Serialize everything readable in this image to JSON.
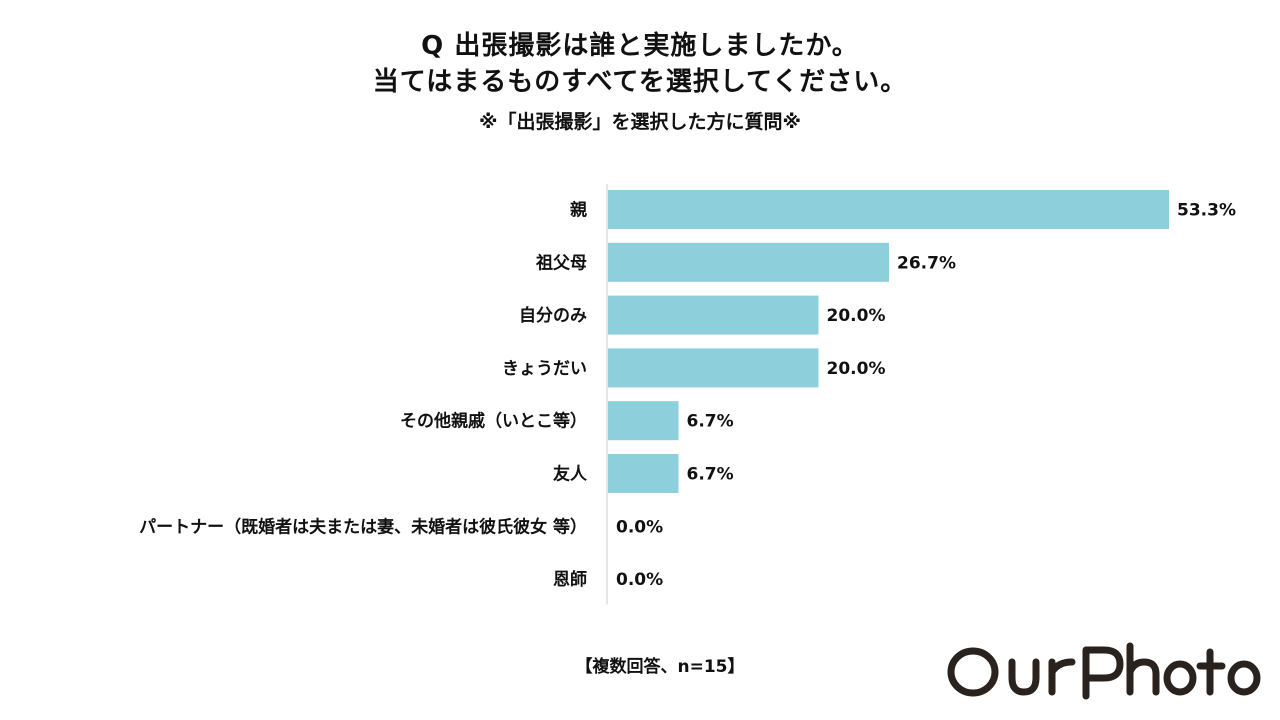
{
  "header": {
    "title_line1": "Q 出張撮影は誰と実施しましたか。",
    "title_line2": "当てはまるものすべてを選択してください。",
    "subtitle": "※「出張撮影」を選択した方に質問※"
  },
  "chart_data": {
    "type": "bar",
    "orientation": "horizontal",
    "categories": [
      "親",
      "祖父母",
      "自分のみ",
      "きょうだい",
      "その他親戚（いとこ等）",
      "友人",
      "パートナー（既婚者は夫または妻、未婚者は彼氏彼女 等）",
      "恩師"
    ],
    "values": [
      53.3,
      26.7,
      20.0,
      20.0,
      6.7,
      6.7,
      0.0,
      0.0
    ],
    "value_labels": [
      "53.3%",
      "26.7%",
      "20.0%",
      "20.0%",
      "6.7%",
      "6.7%",
      "0.0%",
      "0.0%"
    ],
    "unit": "%",
    "xlim": [
      0,
      60
    ],
    "grid": false,
    "bar_color": "#8ecfdc"
  },
  "footer": {
    "note": "【複数回答、n=15】"
  },
  "brand": {
    "logo_text": "OurPhoto",
    "color": "#2a221d"
  }
}
